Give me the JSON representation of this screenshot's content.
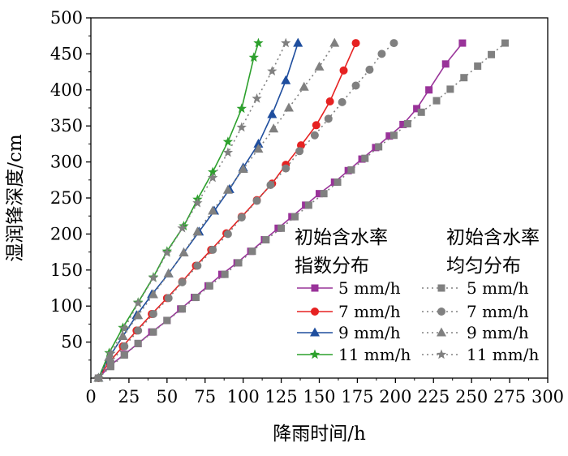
{
  "chart_data": {
    "type": "line",
    "xlabel": "降雨时间/h",
    "ylabel": "湿润锋深度/cm",
    "xlim": [
      0,
      300
    ],
    "ylim": [
      0,
      500
    ],
    "xticks": [
      0,
      25,
      50,
      75,
      100,
      125,
      150,
      175,
      200,
      225,
      250,
      275,
      300
    ],
    "yticks": [
      50,
      100,
      150,
      200,
      250,
      300,
      350,
      400,
      450,
      500
    ],
    "grid": false,
    "legend": {
      "placement": "bottom-right",
      "group_left": "初始含水率\n指数分布",
      "group_right": "初始含水率\n均匀分布"
    },
    "series": [
      {
        "name": "5 mm/h",
        "group": "指数分布",
        "color": "#993399",
        "marker": "square",
        "line": "solid",
        "points": [
          [
            5,
            0
          ],
          [
            13,
            18
          ],
          [
            22,
            33
          ],
          [
            31,
            48
          ],
          [
            40,
            64
          ],
          [
            50,
            80
          ],
          [
            59,
            96
          ],
          [
            68,
            112
          ],
          [
            77,
            128
          ],
          [
            86,
            144
          ],
          [
            96,
            160
          ],
          [
            105,
            176
          ],
          [
            114,
            192
          ],
          [
            123,
            208
          ],
          [
            132,
            224
          ],
          [
            141,
            240
          ],
          [
            150,
            256
          ],
          [
            160,
            272
          ],
          [
            169,
            288
          ],
          [
            178,
            304
          ],
          [
            187,
            320
          ],
          [
            196,
            336
          ],
          [
            205,
            352
          ],
          [
            214,
            374
          ],
          [
            222,
            400
          ],
          [
            233,
            436
          ],
          [
            244,
            465
          ]
        ]
      },
      {
        "name": "7 mm/h",
        "group": "指数分布",
        "color": "#e62222",
        "marker": "circle",
        "line": "solid",
        "points": [
          [
            5,
            0
          ],
          [
            12,
            22
          ],
          [
            21,
            44
          ],
          [
            30,
            66
          ],
          [
            40,
            89
          ],
          [
            50,
            111
          ],
          [
            60,
            134
          ],
          [
            69,
            156
          ],
          [
            79,
            178
          ],
          [
            89,
            201
          ],
          [
            99,
            224
          ],
          [
            109,
            247
          ],
          [
            119,
            270
          ],
          [
            128,
            296
          ],
          [
            138,
            323
          ],
          [
            148,
            351
          ],
          [
            157,
            384
          ],
          [
            166,
            427
          ],
          [
            174,
            465
          ]
        ]
      },
      {
        "name": "9 mm/h",
        "group": "指数分布",
        "color": "#1f4e9e",
        "marker": "triangle",
        "line": "solid",
        "points": [
          [
            5,
            0
          ],
          [
            12,
            29
          ],
          [
            21,
            58
          ],
          [
            30,
            87
          ],
          [
            40,
            116
          ],
          [
            51,
            145
          ],
          [
            61,
            174
          ],
          [
            71,
            203
          ],
          [
            81,
            232
          ],
          [
            91,
            262
          ],
          [
            100,
            292
          ],
          [
            110,
            325
          ],
          [
            119,
            366
          ],
          [
            128,
            413
          ],
          [
            136,
            465
          ]
        ]
      },
      {
        "name": "11 mm/h",
        "group": "指数分布",
        "color": "#2ca02c",
        "marker": "star",
        "line": "solid",
        "points": [
          [
            5,
            0
          ],
          [
            12,
            35
          ],
          [
            21,
            70
          ],
          [
            31,
            105
          ],
          [
            41,
            140
          ],
          [
            50,
            176
          ],
          [
            61,
            211
          ],
          [
            70,
            248
          ],
          [
            80,
            286
          ],
          [
            90,
            328
          ],
          [
            99,
            374
          ],
          [
            107,
            445
          ],
          [
            110,
            465
          ]
        ]
      },
      {
        "name": "5 mm/h",
        "group": "均匀分布",
        "color": "#808080",
        "marker": "square",
        "line": "dotted",
        "points": [
          [
            5,
            0
          ],
          [
            13,
            16
          ],
          [
            22,
            32
          ],
          [
            31,
            48
          ],
          [
            41,
            64
          ],
          [
            50,
            80
          ],
          [
            60,
            96
          ],
          [
            69,
            112
          ],
          [
            78,
            128
          ],
          [
            88,
            144
          ],
          [
            97,
            160
          ],
          [
            106,
            176
          ],
          [
            115,
            192
          ],
          [
            125,
            208
          ],
          [
            134,
            224
          ],
          [
            143,
            240
          ],
          [
            153,
            256
          ],
          [
            162,
            272
          ],
          [
            171,
            289
          ],
          [
            180,
            305
          ],
          [
            189,
            321
          ],
          [
            199,
            337
          ],
          [
            208,
            353
          ],
          [
            217,
            369
          ],
          [
            227,
            385
          ],
          [
            236,
            401
          ],
          [
            245,
            417
          ],
          [
            254,
            433
          ],
          [
            263,
            449
          ],
          [
            272,
            465
          ]
        ]
      },
      {
        "name": "7 mm/h",
        "group": "均匀分布",
        "color": "#808080",
        "marker": "circle",
        "line": "dotted",
        "points": [
          [
            5,
            0
          ],
          [
            13,
            22
          ],
          [
            22,
            44
          ],
          [
            31,
            66
          ],
          [
            41,
            89
          ],
          [
            51,
            111
          ],
          [
            60,
            133
          ],
          [
            70,
            156
          ],
          [
            80,
            178
          ],
          [
            90,
            200
          ],
          [
            99,
            223
          ],
          [
            109,
            246
          ],
          [
            118,
            268
          ],
          [
            128,
            291
          ],
          [
            137,
            315
          ],
          [
            147,
            337
          ],
          [
            156,
            360
          ],
          [
            165,
            383
          ],
          [
            174,
            406
          ],
          [
            183,
            428
          ],
          [
            191,
            450
          ],
          [
            199,
            465
          ]
        ]
      },
      {
        "name": "9 mm/h",
        "group": "均匀分布",
        "color": "#808080",
        "marker": "triangle",
        "line": "dotted",
        "points": [
          [
            5,
            0
          ],
          [
            12,
            29
          ],
          [
            21,
            58
          ],
          [
            31,
            87
          ],
          [
            41,
            116
          ],
          [
            51,
            145
          ],
          [
            61,
            174
          ],
          [
            70,
            203
          ],
          [
            80,
            232
          ],
          [
            90,
            261
          ],
          [
            100,
            290
          ],
          [
            110,
            318
          ],
          [
            120,
            346
          ],
          [
            130,
            375
          ],
          [
            140,
            404
          ],
          [
            150,
            432
          ],
          [
            160,
            465
          ]
        ]
      },
      {
        "name": "11 mm/h",
        "group": "均匀分布",
        "color": "#808080",
        "marker": "star",
        "line": "dotted",
        "points": [
          [
            5,
            0
          ],
          [
            13,
            34
          ],
          [
            22,
            69
          ],
          [
            31,
            104
          ],
          [
            41,
            139
          ],
          [
            50,
            174
          ],
          [
            60,
            208
          ],
          [
            70,
            243
          ],
          [
            80,
            278
          ],
          [
            90,
            313
          ],
          [
            99,
            348
          ],
          [
            109,
            388
          ],
          [
            119,
            426
          ],
          [
            128,
            465
          ]
        ]
      }
    ]
  }
}
